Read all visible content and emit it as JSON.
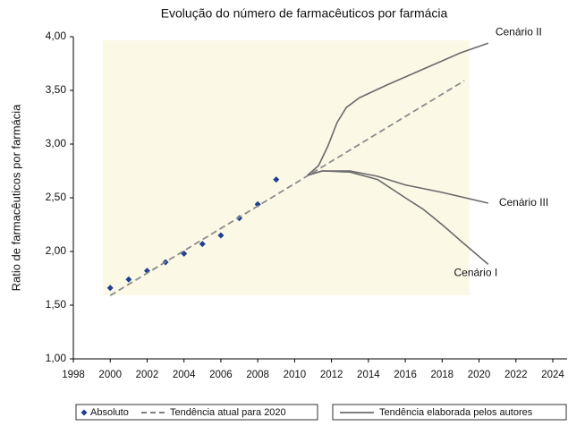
{
  "chart_data": {
    "type": "scatter-line",
    "title": "Evolução do número de farmacêuticos por farmácia",
    "ylabel": "Ratio de farmacêuticos por farmácia",
    "xlim": [
      1998,
      2024
    ],
    "xticks": [
      1998,
      2000,
      2002,
      2004,
      2006,
      2008,
      2010,
      2012,
      2014,
      2016,
      2018,
      2020,
      2022,
      2024
    ],
    "ylim": [
      1,
      4
    ],
    "yticks": [
      {
        "value": 1,
        "label": "1,00"
      },
      {
        "value": 1.5,
        "label": "1,50"
      },
      {
        "value": 2,
        "label": "2,00"
      },
      {
        "value": 2.5,
        "label": "2,50"
      },
      {
        "value": 3,
        "label": "3,00"
      },
      {
        "value": 3.5,
        "label": "3,50"
      },
      {
        "value": 4,
        "label": "4,00"
      }
    ],
    "series": [
      {
        "name": "Absoluto",
        "kind": "scatter",
        "color": "#1f3f8f",
        "x": [
          2000,
          2001,
          2002,
          2003,
          2004,
          2005,
          2006,
          2007,
          2008,
          2009
        ],
        "values": [
          1.66,
          1.74,
          1.82,
          1.9,
          1.98,
          2.07,
          2.15,
          2.31,
          2.44,
          2.67
        ]
      },
      {
        "name": "Tendência atual para 2020",
        "kind": "dashed",
        "color": "#8c8c8c",
        "x": [
          2000,
          2019.2
        ],
        "values": [
          1.59,
          3.59
        ]
      }
    ],
    "scenarios": {
      "name": "Tendência elaborada pelos autores",
      "color": "#6a6a6a",
      "lines": [
        {
          "label": "Cenário II",
          "x": [
            2010.7,
            2011.3,
            2011.8,
            2012.3,
            2012.8,
            2013.5,
            2015,
            2017,
            2019,
            2020.5
          ],
          "values": [
            2.71,
            2.8,
            2.98,
            3.2,
            3.34,
            3.43,
            3.55,
            3.7,
            3.85,
            3.94
          ]
        },
        {
          "label": "Cenário III",
          "x": [
            2010.7,
            2011.5,
            2013,
            2014.5,
            2016,
            2018,
            2020.5
          ],
          "values": [
            2.71,
            2.75,
            2.75,
            2.7,
            2.62,
            2.55,
            2.45
          ]
        },
        {
          "label": "Cenário I",
          "x": [
            2010.7,
            2011.5,
            2013,
            2014.5,
            2016,
            2017,
            2018,
            2019,
            2020.5
          ],
          "values": [
            2.71,
            2.75,
            2.74,
            2.67,
            2.5,
            2.39,
            2.25,
            2.1,
            1.88
          ]
        }
      ]
    }
  }
}
